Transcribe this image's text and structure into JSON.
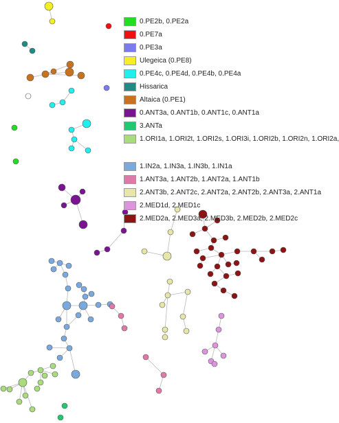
{
  "legend": {
    "groups": [
      [
        {
          "label": "0.PE2b, 0.PE2a",
          "color": "#22dd22"
        },
        {
          "label": "0.PE7a",
          "color": "#ee1111"
        },
        {
          "label": "0.PE3a",
          "color": "#7b7bee"
        },
        {
          "label": "Ulegeica (0.PE8)",
          "color": "#f4ee22"
        },
        {
          "label": "0.PE4c, 0.PE4d, 0.PE4b, 0.PE4a",
          "color": "#22eeee"
        },
        {
          "label": "Hissarica",
          "color": "#1e8c82"
        },
        {
          "label": "Altaica (0.PE1)",
          "color": "#c8711e"
        },
        {
          "label": "0.ANT3a, 0.ANT1b, 0.ANT1c, 0.ANT1a",
          "color": "#7a1490"
        },
        {
          "label": "3.ANTa",
          "color": "#22c870"
        },
        {
          "label": "1.ORI1a, 1.ORI2t, 1.ORI2s, 1.ORI3i, 1.ORI2b, 1.ORI2n, 1.ORI2a,",
          "color": "#a8dc7c"
        }
      ],
      [
        {
          "label": "1.IN2a, 1.IN3a, 1.IN3b, 1.IN1a",
          "color": "#7aaadd"
        },
        {
          "label": "1.ANT3a, 1.ANT2b, 1.ANT2a, 1.ANT1b",
          "color": "#dd7aa8"
        },
        {
          "label": "2.ANT3b, 2.ANT2c, 2.ANT2a, 2.ANT2b, 2.ANT3a, 2.ANT1a",
          "color": "#e6e6a8"
        },
        {
          "label": "2.MED1d, 2.MED1c",
          "color": "#dc94dc"
        },
        {
          "label": "2.MED2a, 2.MED3a, 2.MED3b, 2.MED2b, 2.MED2c",
          "color": "#8c1414"
        }
      ]
    ]
  }
}
